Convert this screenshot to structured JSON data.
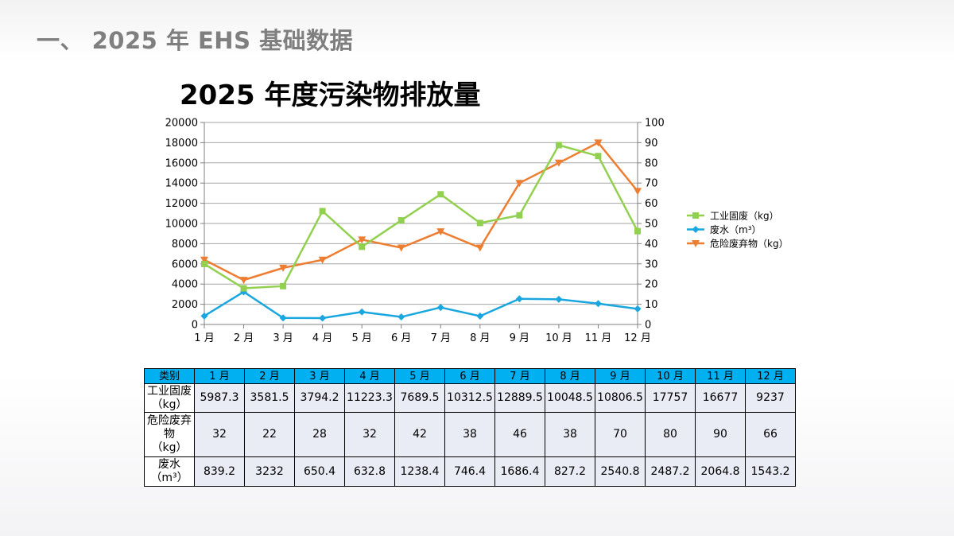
{
  "page": {
    "title": "一、 2025 年 EHS 基础数据"
  },
  "chart_data": {
    "type": "line",
    "title": "2025 年度污染物排放量",
    "categories": [
      "1 月",
      "2 月",
      "3 月",
      "4 月",
      "5 月",
      "6 月",
      "7 月",
      "8 月",
      "9 月",
      "10 月",
      "11 月",
      "12 月"
    ],
    "y_left": {
      "min": 0,
      "max": 20000,
      "step": 2000,
      "ticks": [
        "0",
        "2000",
        "4000",
        "6000",
        "8000",
        "10000",
        "12000",
        "14000",
        "16000",
        "18000",
        "20000"
      ]
    },
    "y_right": {
      "min": 0,
      "max": 100,
      "step": 10,
      "ticks": [
        "0",
        "10",
        "20",
        "30",
        "40",
        "50",
        "60",
        "70",
        "80",
        "90",
        "100"
      ]
    },
    "grid": true,
    "legend_position": "right",
    "series": [
      {
        "name": "工业固废（kg）",
        "axis": "left",
        "color": "#92d050",
        "marker": "square",
        "values": [
          5987.3,
          3581.5,
          3794.2,
          11223.3,
          7689.5,
          10312.5,
          12889.5,
          10048.5,
          10806.5,
          17757,
          16677,
          9237
        ]
      },
      {
        "name": "废水（m³）",
        "axis": "left",
        "color": "#1aa7df",
        "marker": "diamond",
        "values": [
          839.2,
          3232,
          650.4,
          632.8,
          1238.4,
          746.4,
          1686.4,
          827.2,
          2540.8,
          2487.2,
          2064.8,
          1543.2
        ]
      },
      {
        "name": "危险废弃物（kg）",
        "axis": "right",
        "color": "#ed7d31",
        "marker": "triangle-down",
        "values": [
          32,
          22,
          28,
          32,
          42,
          38,
          46,
          38,
          70,
          80,
          90,
          66
        ]
      }
    ]
  },
  "table": {
    "header_label": "类别",
    "months": [
      "1 月",
      "2 月",
      "3 月",
      "4 月",
      "5 月",
      "6 月",
      "7 月",
      "8 月",
      "9 月",
      "10 月",
      "11 月",
      "12 月"
    ],
    "rows": [
      {
        "label_lines": [
          "工业固废",
          "（kg）"
        ],
        "values": [
          "5987.3",
          "3581.5",
          "3794.2",
          "11223.3",
          "7689.5",
          "10312.5",
          "12889.5",
          "10048.5",
          "10806.5",
          "17757",
          "16677",
          "9237"
        ]
      },
      {
        "label_lines": [
          "危险废弃",
          "物",
          "（kg）"
        ],
        "values": [
          "32",
          "22",
          "28",
          "32",
          "42",
          "38",
          "46",
          "38",
          "70",
          "80",
          "90",
          "66"
        ]
      },
      {
        "label_lines": [
          "废水",
          "（m³）"
        ],
        "values": [
          "839.2",
          "3232",
          "650.4",
          "632.8",
          "1238.4",
          "746.4",
          "1686.4",
          "827.2",
          "2540.8",
          "2487.2",
          "2064.8",
          "1543.2"
        ]
      }
    ]
  }
}
